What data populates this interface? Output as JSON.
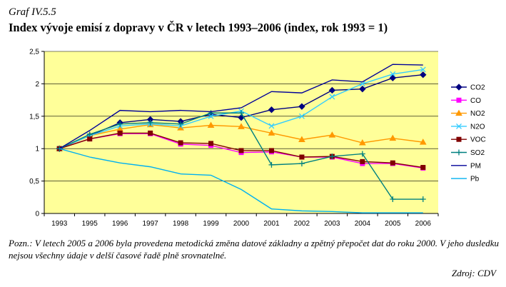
{
  "header": {
    "figure_label": "Graf IV.5.5",
    "title": "Index vývoje emisí z dopravy v ČR v letech 1993–2006 (index, rok 1993 = 1)"
  },
  "footer": {
    "note": "Pozn.: V letech 2005 a 2006 byla provedena metodická změna datové základny a zpětný přepočet dat do roku 2000. V jeho dusledku nejsou všechny údaje v delší časové řadě plně srovnatelné.",
    "source": "Zdroj: CDV"
  },
  "chart_data": {
    "type": "line",
    "title": "",
    "xlabel": "",
    "ylabel": "",
    "ylim": [
      0,
      2.5
    ],
    "y_ticks": [
      "0",
      "0,5",
      "1",
      "1,5",
      "2",
      "2,5"
    ],
    "x": [
      "1993",
      "1995",
      "1996",
      "1997",
      "1998",
      "1999",
      "2000",
      "2001",
      "2002",
      "2003",
      "2004",
      "2005",
      "2006"
    ],
    "plot_background": "#FFFF99",
    "grid": "horizontal",
    "legend_position": "right",
    "series": [
      {
        "name": "CO2",
        "color": "#000080",
        "marker": "diamond",
        "values": [
          1,
          1.2,
          1.4,
          1.45,
          1.42,
          1.53,
          1.48,
          1.6,
          1.65,
          1.9,
          1.92,
          2.09,
          2.14
        ]
      },
      {
        "name": "CO",
        "color": "#FF00FF",
        "marker": "square",
        "values": [
          1,
          1.15,
          1.23,
          1.23,
          1.07,
          1.05,
          0.94,
          0.95,
          0.87,
          0.87,
          0.77,
          0.77,
          0.7
        ]
      },
      {
        "name": "NO2",
        "color": "#FF9900",
        "marker": "triangle",
        "values": [
          1,
          1.2,
          1.3,
          1.37,
          1.32,
          1.36,
          1.34,
          1.24,
          1.14,
          1.21,
          1.09,
          1.16,
          1.1
        ]
      },
      {
        "name": "N2O",
        "color": "#33CCFF",
        "marker": "x",
        "values": [
          1,
          1.2,
          1.35,
          1.38,
          1.35,
          1.5,
          1.58,
          1.35,
          1.5,
          1.8,
          2.0,
          2.15,
          2.22
        ]
      },
      {
        "name": "VOC",
        "color": "#800000",
        "marker": "square",
        "values": [
          1,
          1.15,
          1.24,
          1.24,
          1.09,
          1.08,
          0.97,
          0.97,
          0.87,
          0.88,
          0.8,
          0.78,
          0.71
        ]
      },
      {
        "name": "SO2",
        "color": "#008080",
        "marker": "plus",
        "values": [
          1,
          1.22,
          1.38,
          1.4,
          1.38,
          1.55,
          1.55,
          0.75,
          0.77,
          0.88,
          0.92,
          0.22,
          0.22
        ]
      },
      {
        "name": "PM",
        "color": "#000099",
        "marker": "none",
        "values": [
          1,
          1.28,
          1.59,
          1.57,
          1.59,
          1.57,
          1.63,
          1.88,
          1.86,
          2.06,
          2.03,
          2.3,
          2.29
        ]
      },
      {
        "name": "Pb",
        "color": "#00B0F0",
        "marker": "none",
        "values": [
          1,
          0.87,
          0.78,
          0.72,
          0.61,
          0.59,
          0.37,
          0.07,
          0.04,
          0.03,
          0.01,
          0.01,
          0.01
        ]
      }
    ]
  }
}
